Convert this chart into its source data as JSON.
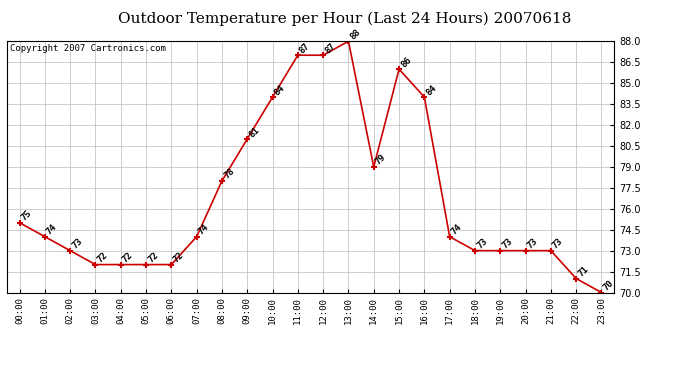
{
  "title": "Outdoor Temperature per Hour (Last 24 Hours) 20070618",
  "copyright_text": "Copyright 2007 Cartronics.com",
  "hours": [
    "00:00",
    "01:00",
    "02:00",
    "03:00",
    "04:00",
    "05:00",
    "06:00",
    "07:00",
    "08:00",
    "09:00",
    "10:00",
    "11:00",
    "12:00",
    "13:00",
    "14:00",
    "15:00",
    "16:00",
    "17:00",
    "18:00",
    "19:00",
    "20:00",
    "21:00",
    "22:00",
    "23:00"
  ],
  "temperatures": [
    75,
    74,
    73,
    72,
    72,
    72,
    72,
    74,
    78,
    81,
    84,
    87,
    87,
    88,
    79,
    86,
    84,
    74,
    73,
    73,
    73,
    73,
    71,
    70
  ],
  "line_color": "#cc0000",
  "marker_color": "#cc0000",
  "grid_color": "#bbbbbb",
  "background_color": "#ffffff",
  "ylim_min": 70.0,
  "ylim_max": 88.0,
  "ytick_step": 1.5,
  "title_fontsize": 11,
  "label_fontsize": 6.5,
  "copyright_fontsize": 6.5
}
